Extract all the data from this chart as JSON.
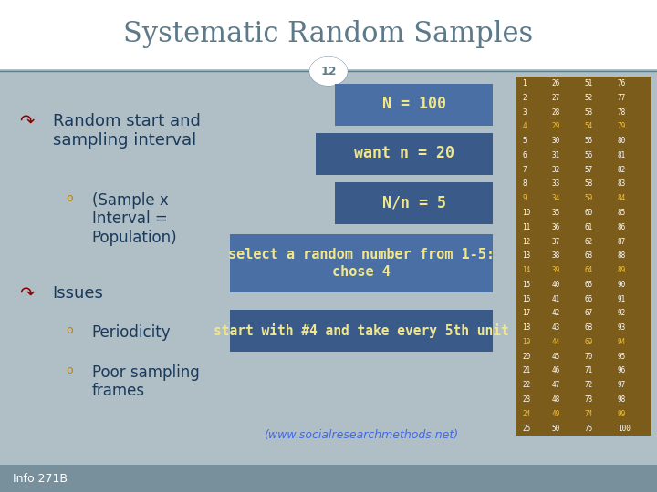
{
  "title": "Systematic Random Samples",
  "slide_number": "12",
  "background_color": "#b0bec5",
  "title_bg": "#ffffff",
  "title_color": "#5d7a8a",
  "slide_num_color": "#607d8b",
  "slide_num_bg": "#ffffff",
  "footer_text": "Info 271B",
  "footer_bg": "#78909c",
  "footer_color": "#ffffff",
  "main_bullet_color": "#8b0000",
  "sub_bullet_color": "#b8860b",
  "main_text_color": "#1a3a5c",
  "box_blue_bg": "#4a6fa5",
  "box_blue_text": "#f0e68c",
  "box_dark_blue_bg": "#3a5a8a",
  "table_bg": "#7b5c1a",
  "table_text_white": "#ffffff",
  "table_text_yellow": "#f0c040",
  "url_color": "#4169e1",
  "table_rows": [
    [
      1,
      26,
      51,
      76
    ],
    [
      2,
      27,
      52,
      77
    ],
    [
      3,
      28,
      53,
      78
    ],
    [
      4,
      29,
      54,
      79
    ],
    [
      5,
      30,
      55,
      80
    ],
    [
      6,
      31,
      56,
      81
    ],
    [
      7,
      32,
      57,
      82
    ],
    [
      8,
      33,
      58,
      83
    ],
    [
      9,
      34,
      59,
      84
    ],
    [
      10,
      35,
      60,
      85
    ],
    [
      11,
      36,
      61,
      86
    ],
    [
      12,
      37,
      62,
      87
    ],
    [
      13,
      38,
      63,
      88
    ],
    [
      14,
      39,
      64,
      89
    ],
    [
      15,
      40,
      65,
      90
    ],
    [
      16,
      41,
      66,
      91
    ],
    [
      17,
      42,
      67,
      92
    ],
    [
      18,
      43,
      68,
      93
    ],
    [
      19,
      44,
      69,
      94
    ],
    [
      20,
      45,
      70,
      95
    ],
    [
      21,
      46,
      71,
      96
    ],
    [
      22,
      47,
      72,
      97
    ],
    [
      23,
      48,
      73,
      98
    ],
    [
      24,
      49,
      74,
      99
    ],
    [
      25,
      50,
      75,
      100
    ]
  ],
  "highlighted_rows": [
    4,
    9,
    14,
    19,
    24
  ],
  "url": "(www.socialresearchmethods.net)"
}
